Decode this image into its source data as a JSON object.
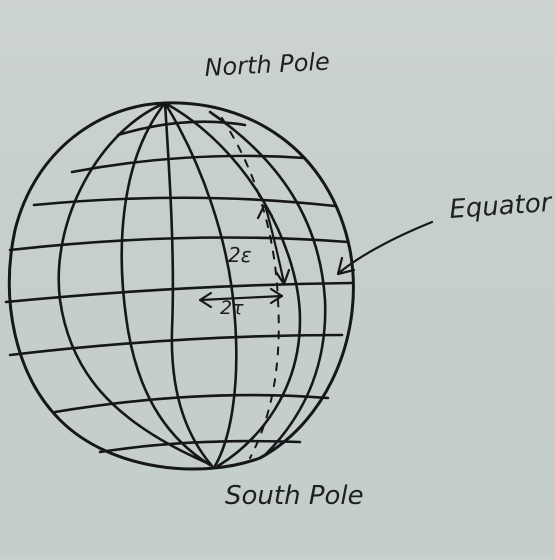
{
  "labels": {
    "north_pole": "North Pole",
    "south_pole": "South Pole",
    "equator": "Equator",
    "lat_spacing": "2ε",
    "lon_spacing": "2τ"
  },
  "colors": {
    "board": "#c9d1cd",
    "ink": "#15171a"
  }
}
